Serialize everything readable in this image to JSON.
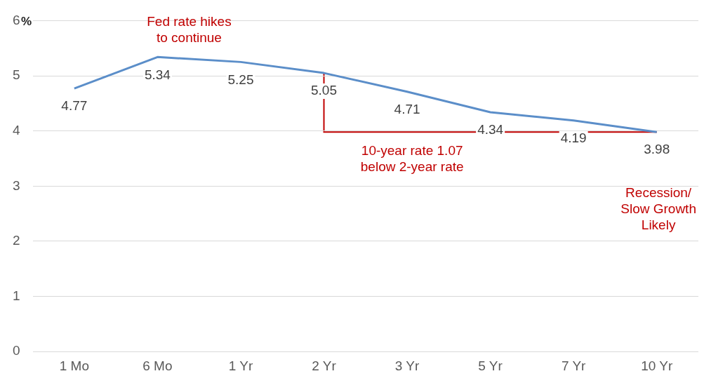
{
  "chart_data": {
    "type": "line",
    "ylabel": "%",
    "categories": [
      "1 Mo",
      "6 Mo",
      "1 Yr",
      "2 Yr",
      "3 Yr",
      "5 Yr",
      "7 Yr",
      "10 Yr"
    ],
    "series": [
      {
        "color": "#5b8ec9",
        "values": [
          4.77,
          5.34,
          5.25,
          5.05,
          4.71,
          4.34,
          4.19,
          3.98
        ]
      }
    ],
    "ylim": [
      0,
      6
    ],
    "yticks": [
      0,
      1,
      2,
      3,
      4,
      5,
      6
    ],
    "grid": "y",
    "legend": false,
    "marker": "none",
    "line_style": "solid",
    "data_labels": true,
    "annotations": [
      "Fed rate hikes\nto continue",
      "10-year rate 1.07\nbelow 2-year rate",
      "Recession/\nSlow Growth\nLikely"
    ]
  }
}
